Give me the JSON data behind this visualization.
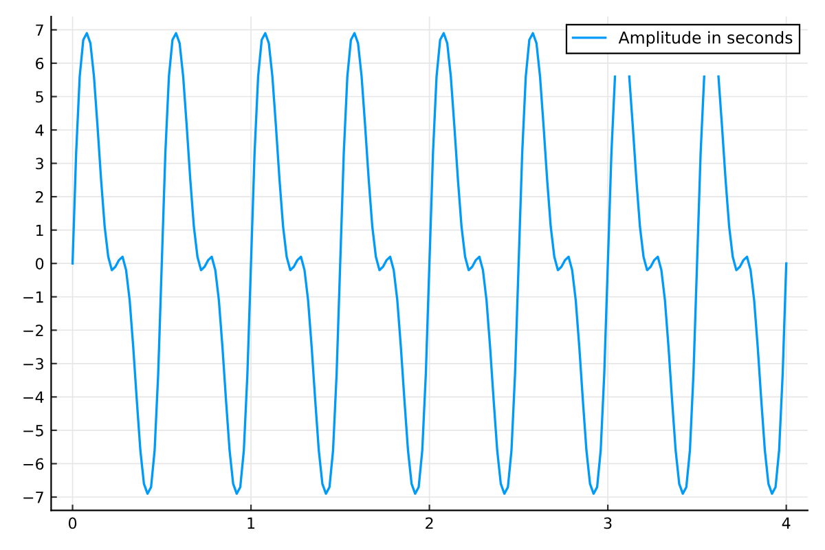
{
  "chart_data": {
    "type": "line",
    "x": [
      0,
      0.02,
      0.04,
      0.06,
      0.08,
      0.1,
      0.12,
      0.14,
      0.16,
      0.18,
      0.2,
      0.22,
      0.24,
      0.26,
      0.28,
      0.3,
      0.32,
      0.34,
      0.36,
      0.38,
      0.4,
      0.42,
      0.44,
      0.46,
      0.48,
      0.5,
      0.52,
      0.54,
      0.56,
      0.58,
      0.6,
      0.62,
      0.64,
      0.66,
      0.68,
      0.7,
      0.72,
      0.74,
      0.76,
      0.78,
      0.8,
      0.82,
      0.84,
      0.86,
      0.88,
      0.9,
      0.92,
      0.94,
      0.96,
      0.98,
      1,
      1.02,
      1.04,
      1.06,
      1.08,
      1.1,
      1.12,
      1.14,
      1.16,
      1.18,
      1.2,
      1.22,
      1.24,
      1.26,
      1.28,
      1.3,
      1.32,
      1.34,
      1.36,
      1.38,
      1.4,
      1.42,
      1.44,
      1.46,
      1.48,
      1.5,
      1.52,
      1.54,
      1.56,
      1.58,
      1.6,
      1.62,
      1.64,
      1.66,
      1.68,
      1.7,
      1.72,
      1.74,
      1.76,
      1.78,
      1.8,
      1.82,
      1.84,
      1.86,
      1.88,
      1.9,
      1.92,
      1.94,
      1.96,
      1.98,
      2,
      2.02,
      2.04,
      2.06,
      2.08,
      2.1,
      2.12,
      2.14,
      2.16,
      2.18,
      2.2,
      2.22,
      2.24,
      2.26,
      2.28,
      2.3,
      2.32,
      2.34,
      2.36,
      2.38,
      2.4,
      2.42,
      2.44,
      2.46,
      2.48,
      2.5,
      2.52,
      2.54,
      2.56,
      2.58,
      2.6,
      2.62,
      2.64,
      2.66,
      2.68,
      2.7,
      2.72,
      2.74,
      2.76,
      2.78,
      2.8,
      2.82,
      2.84,
      2.86,
      2.88,
      2.9,
      2.92,
      2.94,
      2.96,
      2.98,
      3,
      3.02,
      3.04,
      3.06,
      3.08,
      3.1,
      3.12,
      3.14,
      3.16,
      3.18,
      3.2,
      3.22,
      3.24,
      3.26,
      3.28,
      3.3,
      3.32,
      3.34,
      3.36,
      3.38,
      3.4,
      3.42,
      3.44,
      3.46,
      3.48,
      3.5,
      3.52,
      3.54,
      3.56,
      3.58,
      3.6,
      3.62,
      3.64,
      3.66,
      3.68,
      3.7,
      3.72,
      3.74,
      3.76,
      3.78,
      3.8,
      3.82,
      3.84,
      3.86,
      3.88,
      3.9,
      3.92,
      3.94,
      3.96,
      3.98,
      4
    ],
    "series": [
      {
        "name": "Amplitude in seconds",
        "color": "#009af9",
        "values": [
          0,
          3.3,
          5.6,
          6.7,
          6.9,
          6.6,
          5.6,
          4.1,
          2.5,
          1.1,
          0.2,
          -0.2,
          -0.1,
          0.1,
          0.2,
          -0.2,
          -1.1,
          -2.5,
          -4.1,
          -5.6,
          -6.6,
          -6.9,
          -6.7,
          -5.6,
          -3.3,
          0,
          3.3,
          5.6,
          6.7,
          6.9,
          6.6,
          5.6,
          4.1,
          2.5,
          1.1,
          0.2,
          -0.2,
          -0.1,
          0.1,
          0.2,
          -0.2,
          -1.1,
          -2.5,
          -4.1,
          -5.6,
          -6.6,
          -6.9,
          -6.7,
          -5.6,
          -3.3,
          0,
          3.3,
          5.6,
          6.7,
          6.9,
          6.6,
          5.6,
          4.1,
          2.5,
          1.1,
          0.2,
          -0.2,
          -0.1,
          0.1,
          0.2,
          -0.2,
          -1.1,
          -2.5,
          -4.1,
          -5.6,
          -6.6,
          -6.9,
          -6.7,
          -5.6,
          -3.3,
          0,
          3.3,
          5.6,
          6.7,
          6.9,
          6.6,
          5.6,
          4.1,
          2.5,
          1.1,
          0.2,
          -0.2,
          -0.1,
          0.1,
          0.2,
          -0.2,
          -1.1,
          -2.5,
          -4.1,
          -5.6,
          -6.6,
          -6.9,
          -6.7,
          -5.6,
          -3.3,
          0,
          3.3,
          5.6,
          6.7,
          6.9,
          6.6,
          5.6,
          4.1,
          2.5,
          1.1,
          0.2,
          -0.2,
          -0.1,
          0.1,
          0.2,
          -0.2,
          -1.1,
          -2.5,
          -4.1,
          -5.6,
          -6.6,
          -6.9,
          -6.7,
          -5.6,
          -3.3,
          0,
          3.3,
          5.6,
          6.7,
          6.9,
          6.6,
          5.6,
          4.1,
          2.5,
          1.1,
          0.2,
          -0.2,
          -0.1,
          0.1,
          0.2,
          -0.2,
          -1.1,
          -2.5,
          -4.1,
          -5.6,
          -6.6,
          -6.9,
          -6.7,
          -5.6,
          -3.3,
          0,
          3.3,
          5.6,
          null,
          null,
          null,
          5.6,
          4.1,
          2.5,
          1.1,
          0.2,
          -0.2,
          -0.1,
          0.1,
          0.2,
          -0.2,
          -1.1,
          -2.5,
          -4.1,
          -5.6,
          -6.6,
          -6.9,
          -6.7,
          -5.6,
          -3.3,
          0,
          3.3,
          5.6,
          null,
          null,
          null,
          5.6,
          4.1,
          2.5,
          1.1,
          0.2,
          -0.2,
          -0.1,
          0.1,
          0.2,
          -0.2,
          -1.1,
          -2.5,
          -4.1,
          -5.6,
          -6.6,
          -6.9,
          -6.7,
          -5.6,
          -3.3,
          0
        ]
      }
    ],
    "xlim": [
      -0.12,
      4.12
    ],
    "ylim": [
      -7.4,
      7.4
    ],
    "xticks": [
      0,
      1,
      2,
      3,
      4
    ],
    "yticks": [
      {
        "value": -7,
        "label": "−7"
      },
      {
        "value": -6,
        "label": "−6"
      },
      {
        "value": -5,
        "label": "−5"
      },
      {
        "value": -4,
        "label": "−4"
      },
      {
        "value": -3,
        "label": "−3"
      },
      {
        "value": -2,
        "label": "−2"
      },
      {
        "value": -1,
        "label": "−1"
      },
      0,
      1,
      2,
      3,
      4,
      5,
      6,
      7
    ],
    "grid": true,
    "legend": "top right",
    "marker": "none",
    "line_style": "solid"
  }
}
